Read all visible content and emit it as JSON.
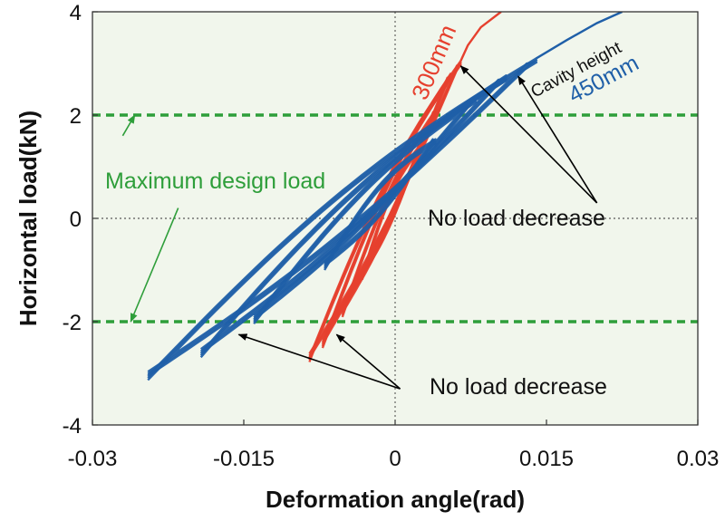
{
  "chart_data": {
    "type": "line",
    "xlabel": "Deformation angle(rad)",
    "ylabel": "Horizontal load(kN)",
    "xlim": [
      -0.03,
      0.03
    ],
    "ylim": [
      -4,
      4
    ],
    "x_ticks": [
      -0.03,
      -0.015,
      0,
      0.015,
      0.03
    ],
    "x_tick_labels": [
      "-0.03",
      "-0.015",
      "0",
      "0.015",
      "0.03"
    ],
    "y_ticks": [
      -4,
      -2,
      0,
      2,
      4
    ],
    "y_tick_labels": [
      "-4",
      "-2",
      "0",
      "2",
      "4"
    ],
    "grid": false,
    "reference_lines": [
      {
        "axis": "x",
        "value": 0,
        "style": "dotted"
      },
      {
        "axis": "y",
        "value": 0,
        "style": "dotted"
      },
      {
        "axis": "y",
        "value": 2,
        "style": "dashed",
        "color": "#2e9e3a"
      },
      {
        "axis": "y",
        "value": -2,
        "style": "dashed",
        "color": "#2e9e3a"
      }
    ],
    "series": [
      {
        "label": "300mm",
        "color": "#e6402e",
        "envelope_pos": [
          [
            0,
            0.3
          ],
          [
            0.002,
            1.2
          ],
          [
            0.004,
            2.1
          ],
          [
            0.0055,
            2.8
          ],
          [
            0.0065,
            3.05
          ]
        ],
        "envelope_neg": [
          [
            0,
            0.3
          ],
          [
            -0.002,
            -0.6
          ],
          [
            -0.004,
            -1.4
          ],
          [
            -0.006,
            -2.1
          ],
          [
            -0.0078,
            -2.6
          ],
          [
            -0.0085,
            -2.7
          ]
        ],
        "failure_branch": [
          [
            0.0065,
            3.05
          ],
          [
            0.0072,
            3.35
          ],
          [
            0.0085,
            3.7
          ],
          [
            0.0105,
            4.0
          ]
        ],
        "cycle_amplitudes": [
          0.0025,
          0.004,
          0.0055,
          0.0065
        ]
      },
      {
        "label": "450mm",
        "color": "#1f5fa8",
        "envelope_pos": [
          [
            0,
            0.5
          ],
          [
            0.003,
            1.3
          ],
          [
            0.006,
            2.0
          ],
          [
            0.009,
            2.5
          ],
          [
            0.012,
            2.9
          ],
          [
            0.014,
            3.1
          ]
        ],
        "envelope_neg": [
          [
            0,
            0.4
          ],
          [
            -0.005,
            -0.6
          ],
          [
            -0.01,
            -1.4
          ],
          [
            -0.015,
            -2.1
          ],
          [
            -0.02,
            -2.7
          ],
          [
            -0.0245,
            -3.05
          ]
        ],
        "failure_branch": [
          [
            0.014,
            3.1
          ],
          [
            0.017,
            3.45
          ],
          [
            0.02,
            3.78
          ],
          [
            0.0225,
            4.0
          ]
        ],
        "cycle_amplitudes": [
          0.004,
          0.008,
          0.011,
          0.014
        ]
      }
    ],
    "annotations": {
      "label_300": "300mm",
      "cavity_height": "Cavity height",
      "label_450": "450mm",
      "max_design_load": "Maximum design load",
      "no_load_decrease_upper": "No load decrease",
      "no_load_decrease_lower": "No load decrease"
    },
    "arrows": [
      {
        "from": [
          0.02,
          0.3
        ],
        "to": [
          0.0065,
          2.95
        ]
      },
      {
        "from": [
          0.02,
          0.3
        ],
        "to": [
          0.0122,
          2.75
        ]
      },
      {
        "from": [
          -0.027,
          1.6
        ],
        "to": [
          -0.0258,
          2.0
        ]
      },
      {
        "from": [
          -0.0215,
          0.2
        ],
        "to": [
          -0.0262,
          -2.0
        ]
      },
      {
        "from": [
          0.0005,
          -3.3
        ],
        "to": [
          -0.0155,
          -2.25
        ]
      },
      {
        "from": [
          0.0005,
          -3.3
        ],
        "to": [
          -0.0058,
          -2.25
        ]
      }
    ],
    "colors": {
      "background": "#f1f6ec",
      "design_load": "#2e9e3a",
      "arrow": "#000000",
      "red_series": "#e6402e",
      "blue_series": "#1f5fa8"
    }
  }
}
